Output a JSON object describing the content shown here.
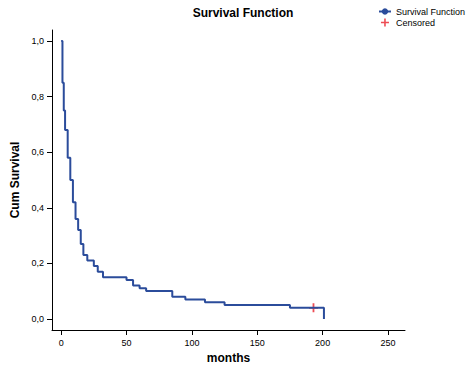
{
  "chart_data": {
    "type": "line",
    "title": "Survival Function",
    "x_label": "months",
    "y_label": "Cum Survival",
    "xlim": [
      -7,
      263
    ],
    "xticks": [
      0,
      50,
      100,
      150,
      200,
      250
    ],
    "ylim": [
      -0.04,
      1.04
    ],
    "yticks": [
      {
        "value": 0,
        "label": "0,0"
      },
      {
        "value": 0.2,
        "label": "0,2"
      },
      {
        "value": 0.4,
        "label": "0,4"
      },
      {
        "value": 0.6,
        "label": "0,6"
      },
      {
        "value": 0.8,
        "label": "0,8"
      },
      {
        "value": 1,
        "label": "1,0"
      }
    ],
    "grid": false,
    "legend": "top-right",
    "series": [
      {
        "name": "Survival Function",
        "type": "line",
        "line_style": "step",
        "color": "#2b4c9b",
        "x": [
          0,
          1,
          2,
          3,
          5,
          7,
          9,
          11,
          13,
          15,
          17,
          20,
          25,
          28,
          32,
          50,
          55,
          60,
          65,
          85,
          95,
          110,
          125,
          175,
          201
        ],
        "values": [
          1.0,
          0.85,
          0.75,
          0.68,
          0.58,
          0.5,
          0.42,
          0.36,
          0.32,
          0.27,
          0.23,
          0.21,
          0.19,
          0.17,
          0.15,
          0.14,
          0.12,
          0.11,
          0.1,
          0.08,
          0.07,
          0.06,
          0.05,
          0.04,
          0.0
        ]
      },
      {
        "name": "Censored",
        "type": "scatter",
        "marker": "plus",
        "color": "#e8202a",
        "x": [
          193
        ],
        "values": [
          0.04
        ]
      }
    ]
  }
}
